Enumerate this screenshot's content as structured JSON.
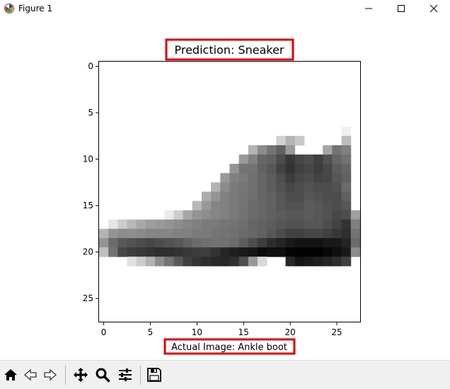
{
  "window": {
    "title": "Figure 1"
  },
  "chart_data": {
    "type": "heatmap",
    "title": "Prediction: Sneaker",
    "xlabel": "Actual Image: Ankle boot",
    "ylabel": "",
    "xlim": [
      -0.5,
      27.5
    ],
    "ylim": [
      27.5,
      -0.5
    ],
    "xticks": [
      0,
      5,
      10,
      15,
      20,
      25
    ],
    "yticks": [
      0,
      5,
      10,
      15,
      20,
      25
    ],
    "colormap": "binary",
    "highlight_color": "#e00000",
    "image_rows": [
      [],
      [],
      [],
      [],
      [],
      [],
      [],
      [
        [
          26,
          0.06
        ]
      ],
      [
        [
          19,
          0.18
        ],
        [
          20,
          0.3
        ],
        [
          21,
          0.22
        ],
        [
          26,
          0.26
        ]
      ],
      [
        [
          16,
          0.3
        ],
        [
          17,
          0.45
        ],
        [
          18,
          0.55
        ],
        [
          19,
          0.62
        ],
        [
          20,
          0.4
        ],
        [
          24,
          0.35
        ],
        [
          25,
          0.55
        ],
        [
          26,
          0.5
        ]
      ],
      [
        [
          15,
          0.4
        ],
        [
          16,
          0.5
        ],
        [
          17,
          0.6
        ],
        [
          18,
          0.62
        ],
        [
          19,
          0.7
        ],
        [
          20,
          0.78
        ],
        [
          21,
          0.72
        ],
        [
          22,
          0.7
        ],
        [
          23,
          0.75
        ],
        [
          24,
          0.68
        ],
        [
          25,
          0.6
        ],
        [
          26,
          0.55
        ]
      ],
      [
        [
          14,
          0.42
        ],
        [
          15,
          0.55
        ],
        [
          16,
          0.55
        ],
        [
          17,
          0.62
        ],
        [
          18,
          0.66
        ],
        [
          19,
          0.74
        ],
        [
          20,
          0.8
        ],
        [
          21,
          0.75
        ],
        [
          22,
          0.72
        ],
        [
          23,
          0.76
        ],
        [
          24,
          0.72
        ],
        [
          25,
          0.64
        ],
        [
          26,
          0.6
        ]
      ],
      [
        [
          13,
          0.4
        ],
        [
          14,
          0.5
        ],
        [
          15,
          0.52
        ],
        [
          16,
          0.56
        ],
        [
          17,
          0.6
        ],
        [
          18,
          0.64
        ],
        [
          19,
          0.7
        ],
        [
          20,
          0.76
        ],
        [
          21,
          0.72
        ],
        [
          22,
          0.7
        ],
        [
          23,
          0.74
        ],
        [
          24,
          0.72
        ],
        [
          25,
          0.66
        ],
        [
          26,
          0.62
        ]
      ],
      [
        [
          12,
          0.3
        ],
        [
          13,
          0.45
        ],
        [
          14,
          0.52
        ],
        [
          15,
          0.54
        ],
        [
          16,
          0.56
        ],
        [
          17,
          0.6
        ],
        [
          18,
          0.64
        ],
        [
          19,
          0.68
        ],
        [
          20,
          0.72
        ],
        [
          21,
          0.7
        ],
        [
          22,
          0.68
        ],
        [
          23,
          0.7
        ],
        [
          24,
          0.7
        ],
        [
          25,
          0.68
        ],
        [
          26,
          0.58
        ]
      ],
      [
        [
          11,
          0.32
        ],
        [
          12,
          0.42
        ],
        [
          13,
          0.5
        ],
        [
          14,
          0.52
        ],
        [
          15,
          0.55
        ],
        [
          16,
          0.57
        ],
        [
          17,
          0.6
        ],
        [
          18,
          0.62
        ],
        [
          19,
          0.66
        ],
        [
          20,
          0.7
        ],
        [
          21,
          0.7
        ],
        [
          22,
          0.66
        ],
        [
          23,
          0.68
        ],
        [
          24,
          0.7
        ],
        [
          25,
          0.7
        ],
        [
          26,
          0.62
        ]
      ],
      [
        [
          10,
          0.28
        ],
        [
          11,
          0.4
        ],
        [
          12,
          0.48
        ],
        [
          13,
          0.5
        ],
        [
          14,
          0.52
        ],
        [
          15,
          0.55
        ],
        [
          16,
          0.58
        ],
        [
          17,
          0.6
        ],
        [
          18,
          0.62
        ],
        [
          19,
          0.66
        ],
        [
          20,
          0.68
        ],
        [
          21,
          0.68
        ],
        [
          22,
          0.64
        ],
        [
          23,
          0.66
        ],
        [
          24,
          0.68
        ],
        [
          25,
          0.7
        ],
        [
          26,
          0.66
        ]
      ],
      [
        [
          7,
          0.08
        ],
        [
          8,
          0.2
        ],
        [
          9,
          0.35
        ],
        [
          10,
          0.42
        ],
        [
          11,
          0.45
        ],
        [
          12,
          0.48
        ],
        [
          13,
          0.5
        ],
        [
          14,
          0.52
        ],
        [
          15,
          0.55
        ],
        [
          16,
          0.58
        ],
        [
          17,
          0.6
        ],
        [
          18,
          0.62
        ],
        [
          19,
          0.64
        ],
        [
          20,
          0.66
        ],
        [
          21,
          0.66
        ],
        [
          22,
          0.64
        ],
        [
          23,
          0.66
        ],
        [
          24,
          0.68
        ],
        [
          25,
          0.72
        ],
        [
          26,
          0.7
        ],
        [
          27,
          0.38
        ]
      ],
      [
        [
          1,
          0.1
        ],
        [
          2,
          0.2
        ],
        [
          3,
          0.28
        ],
        [
          4,
          0.34
        ],
        [
          5,
          0.38
        ],
        [
          6,
          0.4
        ],
        [
          7,
          0.42
        ],
        [
          8,
          0.45
        ],
        [
          9,
          0.48
        ],
        [
          10,
          0.5
        ],
        [
          11,
          0.52
        ],
        [
          12,
          0.52
        ],
        [
          13,
          0.54
        ],
        [
          14,
          0.55
        ],
        [
          15,
          0.57
        ],
        [
          16,
          0.6
        ],
        [
          17,
          0.62
        ],
        [
          18,
          0.64
        ],
        [
          19,
          0.66
        ],
        [
          20,
          0.68
        ],
        [
          21,
          0.68
        ],
        [
          22,
          0.66
        ],
        [
          23,
          0.66
        ],
        [
          24,
          0.7
        ],
        [
          25,
          0.74
        ],
        [
          26,
          0.8
        ],
        [
          27,
          0.5
        ]
      ],
      [
        [
          0,
          0.3
        ],
        [
          1,
          0.42
        ],
        [
          2,
          0.45
        ],
        [
          3,
          0.44
        ],
        [
          4,
          0.46
        ],
        [
          5,
          0.48
        ],
        [
          6,
          0.48
        ],
        [
          7,
          0.48
        ],
        [
          8,
          0.5
        ],
        [
          9,
          0.5
        ],
        [
          10,
          0.52
        ],
        [
          11,
          0.52
        ],
        [
          12,
          0.54
        ],
        [
          13,
          0.55
        ],
        [
          14,
          0.56
        ],
        [
          15,
          0.58
        ],
        [
          16,
          0.6
        ],
        [
          17,
          0.62
        ],
        [
          18,
          0.66
        ],
        [
          19,
          0.7
        ],
        [
          20,
          0.74
        ],
        [
          21,
          0.74
        ],
        [
          22,
          0.72
        ],
        [
          23,
          0.72
        ],
        [
          24,
          0.75
        ],
        [
          25,
          0.78
        ],
        [
          26,
          0.82
        ],
        [
          27,
          0.55
        ]
      ],
      [
        [
          0,
          0.42
        ],
        [
          1,
          0.58
        ],
        [
          2,
          0.65
        ],
        [
          3,
          0.68
        ],
        [
          4,
          0.7
        ],
        [
          5,
          0.72
        ],
        [
          6,
          0.7
        ],
        [
          7,
          0.68
        ],
        [
          8,
          0.66
        ],
        [
          9,
          0.62
        ],
        [
          10,
          0.58
        ],
        [
          11,
          0.56
        ],
        [
          12,
          0.55
        ],
        [
          13,
          0.56
        ],
        [
          14,
          0.58
        ],
        [
          15,
          0.64
        ],
        [
          16,
          0.7
        ],
        [
          17,
          0.76
        ],
        [
          18,
          0.82
        ],
        [
          19,
          0.86
        ],
        [
          20,
          0.9
        ],
        [
          21,
          0.92
        ],
        [
          22,
          0.92
        ],
        [
          23,
          0.92
        ],
        [
          24,
          0.9
        ],
        [
          25,
          0.9
        ],
        [
          26,
          0.86
        ],
        [
          27,
          0.58
        ]
      ],
      [
        [
          0,
          0.25
        ],
        [
          1,
          0.55
        ],
        [
          2,
          0.72
        ],
        [
          3,
          0.76
        ],
        [
          4,
          0.78
        ],
        [
          5,
          0.8
        ],
        [
          6,
          0.82
        ],
        [
          7,
          0.82
        ],
        [
          8,
          0.8
        ],
        [
          9,
          0.78
        ],
        [
          10,
          0.76
        ],
        [
          11,
          0.76
        ],
        [
          12,
          0.8
        ],
        [
          13,
          0.85
        ],
        [
          14,
          0.88
        ],
        [
          15,
          0.9
        ],
        [
          16,
          0.92
        ],
        [
          17,
          0.96
        ],
        [
          18,
          0.94
        ],
        [
          19,
          0.94
        ],
        [
          20,
          0.98
        ],
        [
          21,
          0.99
        ],
        [
          22,
          0.99
        ],
        [
          23,
          0.99
        ],
        [
          24,
          0.97
        ],
        [
          25,
          0.94
        ],
        [
          26,
          0.9
        ],
        [
          27,
          0.45
        ]
      ],
      [
        [
          3,
          0.12
        ],
        [
          4,
          0.2
        ],
        [
          5,
          0.3
        ],
        [
          6,
          0.45
        ],
        [
          7,
          0.55
        ],
        [
          8,
          0.65
        ],
        [
          9,
          0.75
        ],
        [
          10,
          0.8
        ],
        [
          11,
          0.82
        ],
        [
          12,
          0.84
        ],
        [
          13,
          0.85
        ],
        [
          14,
          0.82
        ],
        [
          15,
          0.7
        ],
        [
          16,
          0.4
        ],
        [
          17,
          0.15
        ],
        [
          20,
          0.85
        ],
        [
          21,
          0.92
        ],
        [
          22,
          0.9
        ],
        [
          23,
          0.88
        ],
        [
          24,
          0.86
        ],
        [
          25,
          0.82
        ],
        [
          26,
          0.75
        ]
      ],
      [],
      [],
      [],
      [],
      [],
      []
    ]
  },
  "toolbar": {
    "items": [
      {
        "name": "home-button",
        "icon": "home-icon"
      },
      {
        "name": "back-button",
        "icon": "arrow-left-icon"
      },
      {
        "name": "forward-button",
        "icon": "arrow-right-icon"
      },
      {
        "name": "pan-button",
        "icon": "move-icon"
      },
      {
        "name": "zoom-button",
        "icon": "magnifier-icon"
      },
      {
        "name": "subplots-button",
        "icon": "sliders-icon"
      },
      {
        "name": "save-button",
        "icon": "floppy-disk-icon"
      }
    ]
  }
}
